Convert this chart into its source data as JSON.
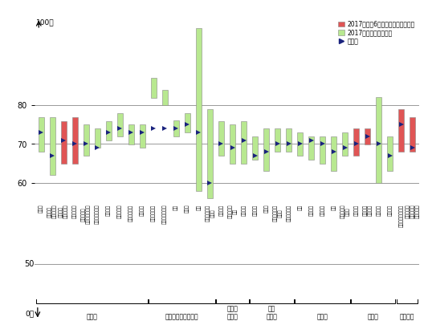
{
  "categories": [
    "百貨店",
    "スーパー\nマーケット",
    "コンビニ\nエンストア",
    "家電量販店",
    "生活用品店\nホームセンター",
    "ドラッグストア",
    "衣料品店",
    "各種専門店",
    "自動車販売店",
    "通信販売",
    "シティホテル",
    "ビジネスホテル",
    "飲食",
    "カフェ",
    "旅行",
    "エンタテイン\nメント",
    "国際航空",
    "国内長距離\n交通",
    "近傍鉄道",
    "携帯電話",
    "宅配便",
    "フィットネス\nクラブ",
    "教育サービス",
    "銀行",
    "生命保険",
    "損害保険",
    "証券",
    "クレジット\nカード",
    "事務機器",
    "住設機器\nサービス",
    "電力小売",
    "ガス小売",
    "パリーグ野球観戦",
    "銀行（個人\n向け貓蓄・\n投資商品）"
  ],
  "bar_bottom": [
    68,
    62,
    65,
    65,
    67,
    69,
    71,
    72,
    70,
    69,
    82,
    80,
    72,
    73,
    58,
    56,
    67,
    65,
    65,
    66,
    63,
    68,
    68,
    67,
    66,
    65,
    63,
    67,
    67,
    70,
    60,
    63,
    68,
    68
  ],
  "bar_top": [
    77,
    77,
    76,
    77,
    75,
    74,
    76,
    78,
    75,
    75,
    87,
    84,
    76,
    78,
    100,
    79,
    76,
    75,
    76,
    72,
    74,
    74,
    74,
    73,
    72,
    72,
    72,
    73,
    74,
    74,
    82,
    72,
    79,
    77
  ],
  "bar_color": [
    "green",
    "green",
    "red",
    "red",
    "green",
    "green",
    "green",
    "green",
    "green",
    "green",
    "green",
    "green",
    "green",
    "green",
    "green",
    "green",
    "green",
    "green",
    "green",
    "green",
    "green",
    "green",
    "green",
    "green",
    "green",
    "green",
    "green",
    "green",
    "red",
    "red",
    "green",
    "green",
    "red",
    "red"
  ],
  "median": [
    73,
    67,
    71,
    70,
    70,
    69,
    73,
    74,
    73,
    73,
    74,
    74,
    74,
    75,
    73,
    60,
    70,
    69,
    71,
    67,
    68,
    70,
    70,
    70,
    71,
    70,
    68,
    69,
    70,
    72,
    70,
    67,
    75,
    69
  ],
  "group_labels": [
    "小売系",
    "観光・飲食・交通系",
    "通信・\n物流系",
    "生活\n支援系",
    "金融系",
    "その他",
    "特殊調査"
  ],
  "group_ranges": [
    [
      0,
      9
    ],
    [
      10,
      15
    ],
    [
      16,
      18
    ],
    [
      19,
      22
    ],
    [
      23,
      27
    ],
    [
      28,
      31
    ],
    [
      32,
      33
    ]
  ],
  "red_color": "#e05555",
  "green_color": "#b8e890",
  "median_color": "#1a237e",
  "grid_color": "#999999",
  "legend_red": "2017年度第6回（今回）発表の業種",
  "legend_green": "2017年度調査済の業種",
  "legend_marker": "中央値",
  "yticks": [
    60,
    70,
    80
  ],
  "ymin": 55,
  "ymax": 103,
  "bar_width": 0.5
}
